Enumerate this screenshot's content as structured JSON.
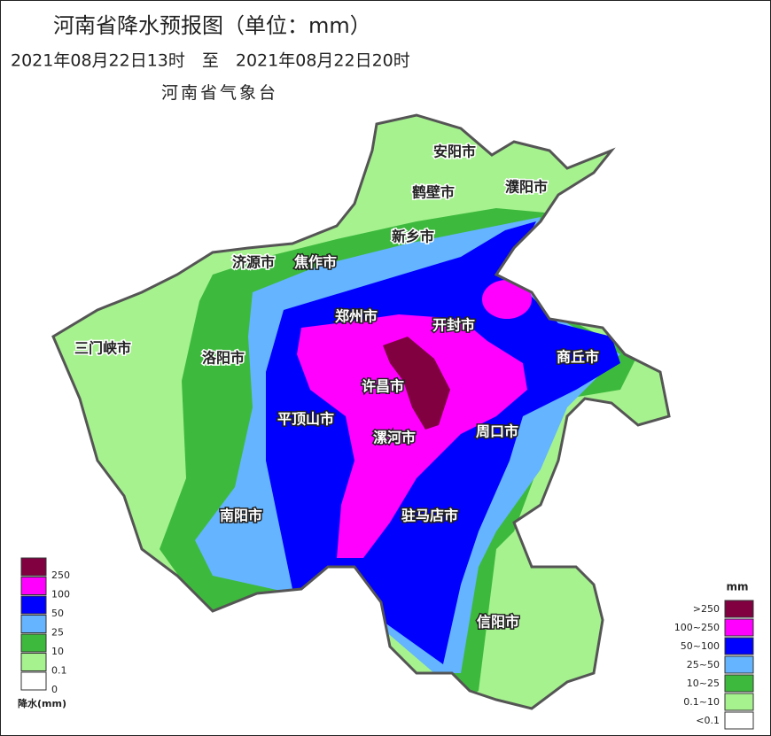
{
  "header": {
    "title": "河南省降水预报图（单位：mm）",
    "period": "2021年08月22日13时　至　2021年08月22日20时",
    "issuer": "河南省气象台"
  },
  "cities": [
    "安阳市",
    "鹤壁市",
    "濮阳市",
    "新乡市",
    "济源市",
    "焦作市",
    "郑州市",
    "开封市",
    "三门峡市",
    "洛阳市",
    "商丘市",
    "许昌市",
    "平顶山市",
    "漯河市",
    "周口市",
    "南阳市",
    "驻马店市",
    "信阳市"
  ],
  "legend_left": {
    "title": "降水(mm)",
    "labels": [
      "250",
      "100",
      "50",
      "25",
      "10",
      "0.1",
      "0"
    ],
    "colors": [
      "#800040",
      "#ff00ff",
      "#0000ff",
      "#64b4ff",
      "#3dba3d",
      "#a6f28f",
      "#ffffff"
    ]
  },
  "legend_right": {
    "unit": "mm",
    "labels": [
      ">250",
      "100~250",
      "50~100",
      "25~50",
      "10~25",
      "0.1~10",
      "<0.1"
    ],
    "colors": [
      "#800040",
      "#ff00ff",
      "#0000ff",
      "#64b4ff",
      "#3dba3d",
      "#a6f28f",
      "#ffffff"
    ]
  }
}
